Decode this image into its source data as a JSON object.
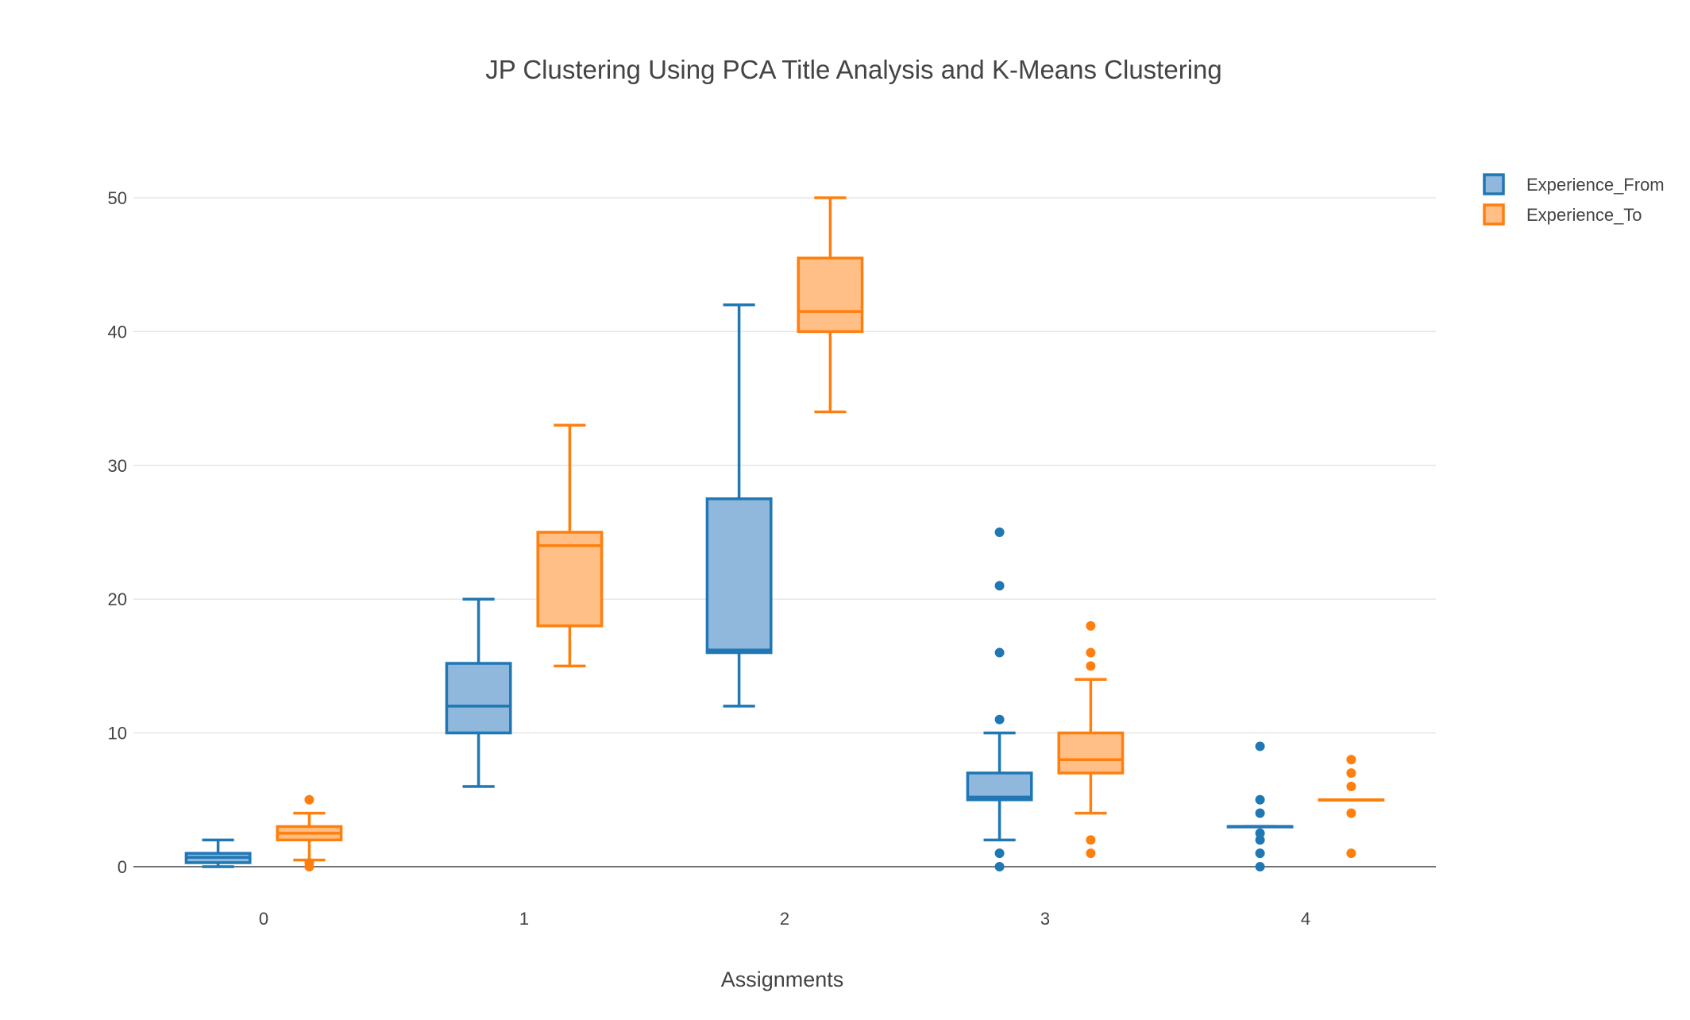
{
  "chart_data": {
    "type": "box",
    "title": "JP Clustering Using PCA Title Analysis and K-Means Clustering",
    "xlabel": "Assignments",
    "ylabel": "",
    "categories": [
      "0",
      "1",
      "2",
      "3",
      "4"
    ],
    "ylim": [
      -2,
      54
    ],
    "yticks": [
      0,
      10,
      20,
      30,
      40,
      50
    ],
    "grid": true,
    "legend_position": "top-right",
    "series": [
      {
        "name": "Experience_From",
        "line_color": "#1f77b4",
        "fill_color": "#8fb8dc",
        "boxes": [
          {
            "category": "0",
            "lower_whisker": 0,
            "q1": 0.3,
            "median": 0.7,
            "q3": 1,
            "upper_whisker": 2,
            "outliers": []
          },
          {
            "category": "1",
            "lower_whisker": 6,
            "q1": 10,
            "median": 12,
            "q3": 15.2,
            "upper_whisker": 20,
            "outliers": []
          },
          {
            "category": "2",
            "lower_whisker": 12,
            "q1": 16,
            "median": 16.2,
            "q3": 27.5,
            "upper_whisker": 42,
            "outliers": []
          },
          {
            "category": "3",
            "lower_whisker": 2,
            "q1": 5,
            "median": 5.2,
            "q3": 7,
            "upper_whisker": 10,
            "outliers": [
              0,
              1,
              11,
              16,
              21,
              25
            ]
          },
          {
            "category": "4",
            "lower_whisker": 3,
            "q1": 3,
            "median": 3,
            "q3": 3,
            "upper_whisker": 3,
            "outliers": [
              0,
              1,
              2,
              2.5,
              4,
              5,
              9
            ]
          }
        ]
      },
      {
        "name": "Experience_To",
        "line_color": "#ff7f0e",
        "fill_color": "#ffbf87",
        "boxes": [
          {
            "category": "0",
            "lower_whisker": 0.5,
            "q1": 2,
            "median": 2.5,
            "q3": 3,
            "upper_whisker": 4,
            "outliers": [
              0,
              0.3,
              5
            ]
          },
          {
            "category": "1",
            "lower_whisker": 15,
            "q1": 18,
            "median": 24,
            "q3": 25,
            "upper_whisker": 33,
            "outliers": []
          },
          {
            "category": "2",
            "lower_whisker": 34,
            "q1": 40,
            "median": 41.5,
            "q3": 45.5,
            "upper_whisker": 50,
            "outliers": []
          },
          {
            "category": "3",
            "lower_whisker": 4,
            "q1": 7,
            "median": 8,
            "q3": 10,
            "upper_whisker": 14,
            "outliers": [
              1,
              2,
              15,
              16,
              18
            ]
          },
          {
            "category": "4",
            "lower_whisker": 5,
            "q1": 5,
            "median": 5,
            "q3": 5,
            "upper_whisker": 5,
            "outliers": [
              1,
              4,
              6,
              7,
              8
            ]
          }
        ]
      }
    ]
  }
}
